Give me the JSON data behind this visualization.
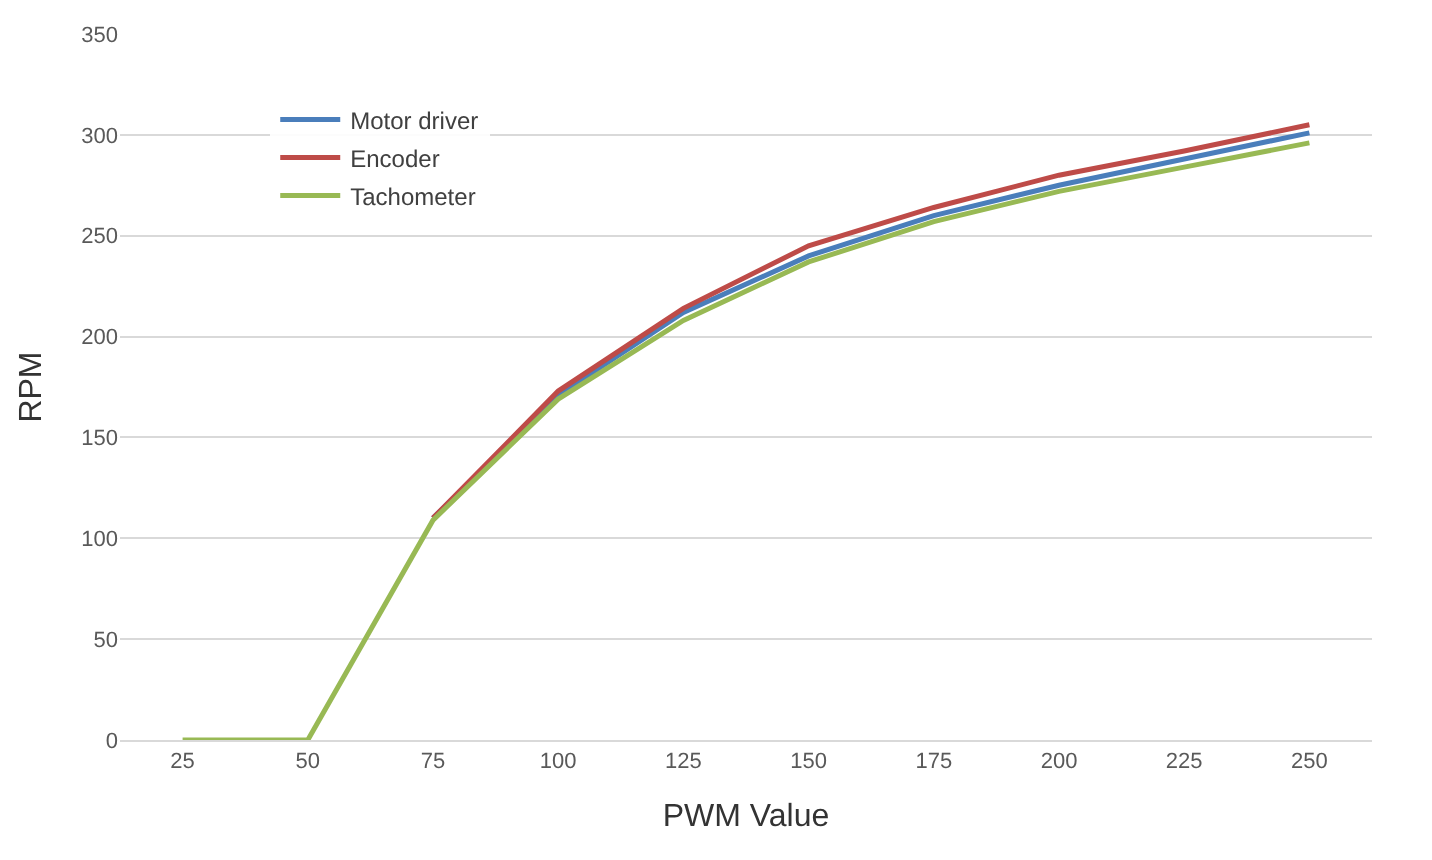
{
  "chart_data": {
    "type": "line",
    "xlabel": "PWM Value",
    "ylabel": "RPM",
    "categories": [
      "25",
      "50",
      "75",
      "100",
      "125",
      "150",
      "175",
      "200",
      "225",
      "250"
    ],
    "series": [
      {
        "name": "Motor driver",
        "color": "#4a7ebb",
        "values": [
          null,
          null,
          110,
          171,
          212,
          240,
          260,
          275,
          288,
          301
        ]
      },
      {
        "name": "Encoder",
        "color": "#be4b48",
        "values": [
          null,
          null,
          110,
          173,
          214,
          245,
          264,
          280,
          292,
          305
        ]
      },
      {
        "name": "Tachometer",
        "color": "#98b954",
        "values": [
          0,
          0,
          109,
          169,
          208,
          237,
          257,
          272,
          284,
          296
        ]
      }
    ],
    "ylim": [
      0,
      350
    ],
    "yticks": [
      0,
      50,
      100,
      150,
      200,
      250,
      300,
      350
    ],
    "grid": "y",
    "legend": "top left",
    "marker": "none",
    "line_style": "solid"
  }
}
